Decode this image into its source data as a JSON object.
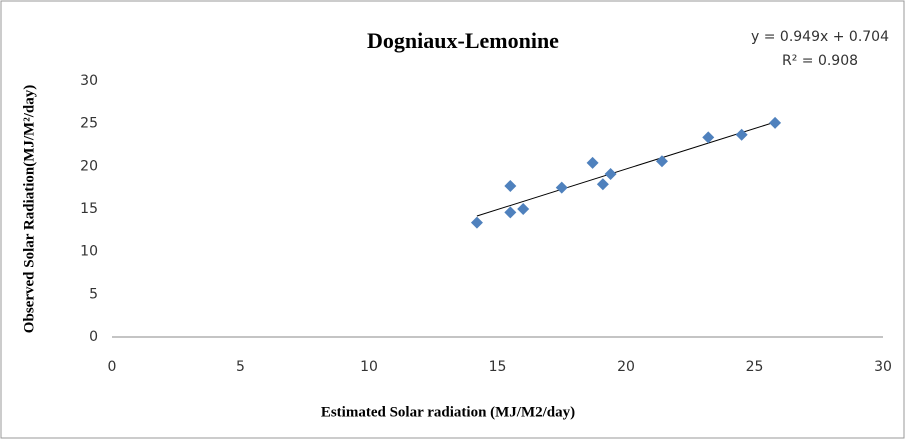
{
  "chart_data": {
    "type": "scatter",
    "title": "Dogniaux-Lemonine",
    "x_label": "Estimated Solar radiation (MJ/M2/day)",
    "y_label": "Observed Solar Radiation(MJ/M²/day)",
    "annotations": [
      "y = 0.949x + 0.704",
      "R² = 0.908"
    ],
    "trendline": {
      "slope": 0.949,
      "intercept": 0.704
    },
    "color": "#4f81bd",
    "series": [
      {
        "name": "Observed",
        "color": "#4f81bd",
        "x": [
          14.2,
          15.5,
          15.5,
          16.0,
          17.5,
          18.7,
          19.1,
          19.4,
          21.4,
          23.2,
          24.5,
          25.8
        ],
        "values": [
          13.4,
          17.7,
          14.6,
          15.0,
          17.5,
          20.4,
          17.9,
          19.1,
          20.6,
          23.4,
          23.7,
          25.1
        ]
      }
    ],
    "xlim": [
      0,
      30
    ],
    "xticks": [
      0,
      5,
      10,
      15,
      20,
      25,
      30
    ],
    "ylim": [
      0,
      30
    ],
    "yticks": [
      0,
      5,
      10,
      15,
      20,
      25,
      30
    ],
    "grid": false,
    "legend": false
  }
}
